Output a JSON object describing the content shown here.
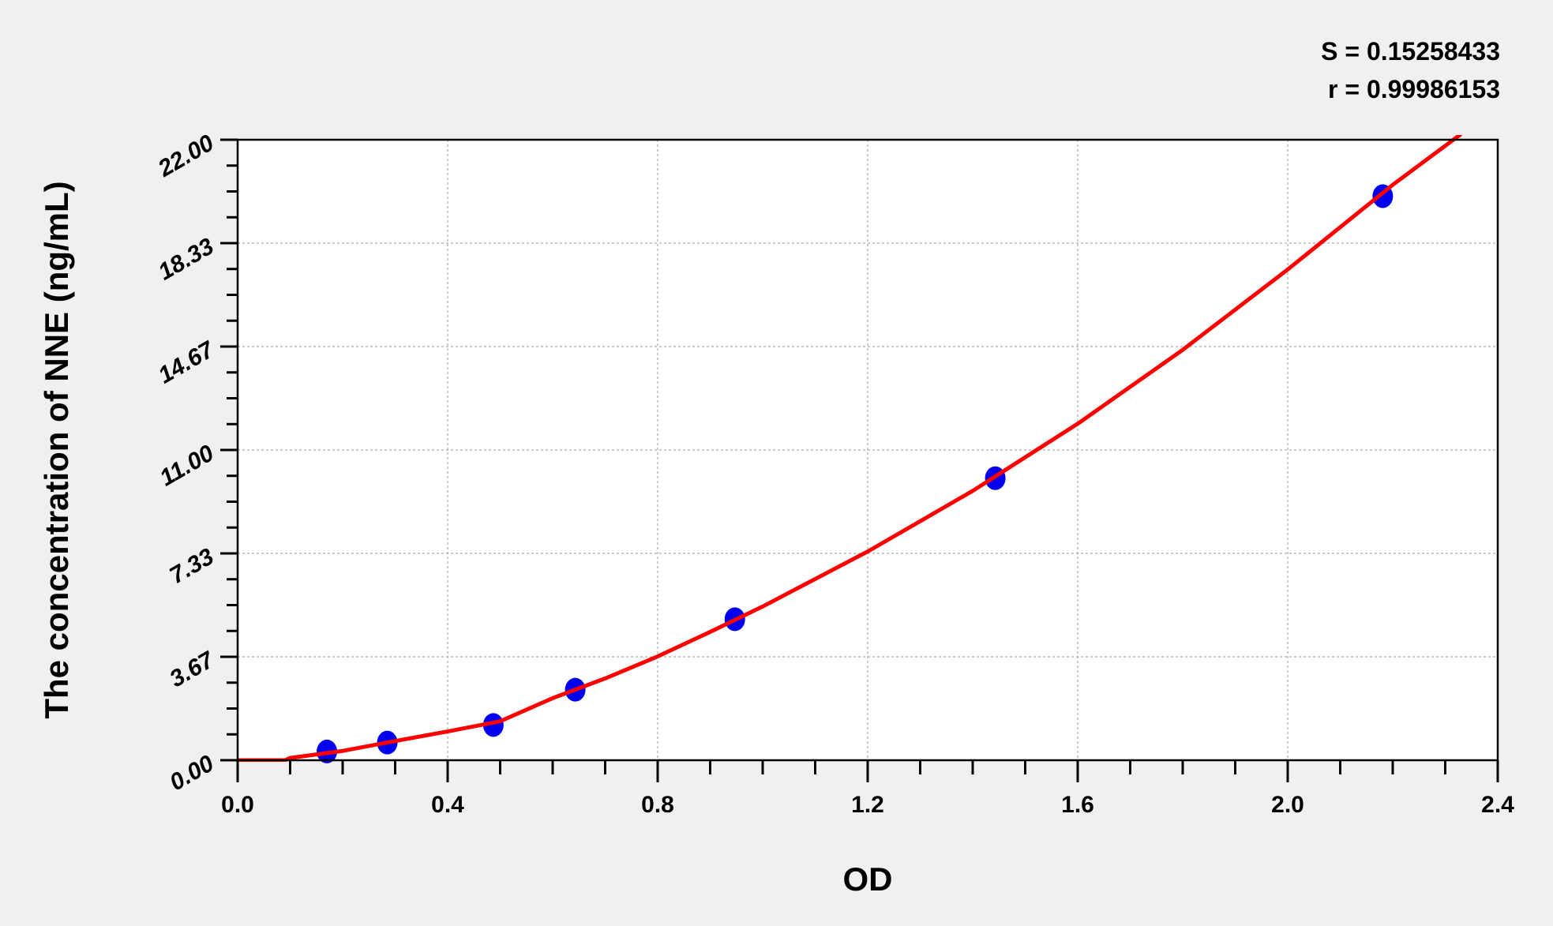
{
  "chart_data": {
    "type": "scatter",
    "title": "",
    "xlabel": "OD",
    "ylabel": "The concentration of NNE (ng/mL)",
    "xlim": [
      0,
      2.4
    ],
    "ylim": [
      0,
      22
    ],
    "x_ticks": [
      "0.0",
      "0.4",
      "0.8",
      "1.2",
      "1.6",
      "2.0",
      "2.4"
    ],
    "y_ticks": [
      "0.00",
      "3.67",
      "7.33",
      "11.00",
      "14.67",
      "18.33",
      "22.00"
    ],
    "grid": true,
    "stats": [
      "S = 0.15258433",
      "r = 0.99986153"
    ],
    "points": {
      "color": "#0000ee",
      "x": [
        0.17,
        0.285,
        0.487,
        0.643,
        0.947,
        1.443,
        2.181
      ],
      "y": [
        0.31,
        0.625,
        1.25,
        2.5,
        5,
        10,
        20
      ]
    },
    "fit_curve": {
      "color": "#ff0000",
      "x": [
        0.0,
        0.09,
        0.1,
        0.2,
        0.3,
        0.4,
        0.5,
        0.6,
        0.7,
        0.8,
        0.9,
        1.0,
        1.2,
        1.4,
        1.6,
        1.8,
        2.0,
        2.2,
        2.33
      ],
      "y": [
        0.0,
        0.0,
        0.08,
        0.33,
        0.68,
        1.02,
        1.38,
        2.2,
        2.9,
        3.68,
        4.55,
        5.45,
        7.4,
        9.55,
        11.93,
        14.55,
        17.4,
        20.4,
        22.2
      ]
    }
  }
}
